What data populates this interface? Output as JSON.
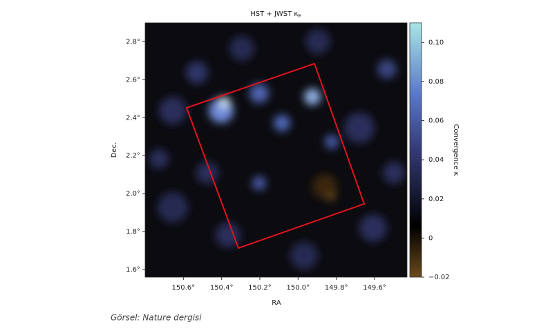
{
  "chart_data": {
    "type": "image",
    "title": "HST + JWST κ",
    "title_subscript": "E",
    "x_label": "RA",
    "y_label": "Dec.",
    "colorbar_label": "Convergence κ",
    "xlim": [
      150.8,
      149.43
    ],
    "xticks": [
      {
        "value": 150.6,
        "label": "150.6°"
      },
      {
        "value": 150.4,
        "label": "150.4°"
      },
      {
        "value": 150.2,
        "label": "150.2°"
      },
      {
        "value": 150.0,
        "label": "150.0°"
      },
      {
        "value": 149.8,
        "label": "149.8°"
      },
      {
        "value": 149.6,
        "label": "149.6°"
      }
    ],
    "ylim": [
      1.56,
      2.9
    ],
    "yticks": [
      {
        "value": 1.6,
        "label": "1.6°"
      },
      {
        "value": 1.8,
        "label": "1.8°"
      },
      {
        "value": 2.0,
        "label": "2.0°"
      },
      {
        "value": 2.2,
        "label": "2.2°"
      },
      {
        "value": 2.4,
        "label": "2.4°"
      },
      {
        "value": 2.6,
        "label": "2.6°"
      },
      {
        "value": 2.8,
        "label": "2.8°"
      }
    ],
    "clim": [
      -0.02,
      0.11
    ],
    "cticks": [
      {
        "value": -0.02,
        "label": "−0.02"
      },
      0,
      0.02,
      0.04,
      0.06,
      0.08,
      {
        "value": 0.1,
        "label": "0.10"
      }
    ]
  },
  "caption": "Görsel: Nature dergisi"
}
